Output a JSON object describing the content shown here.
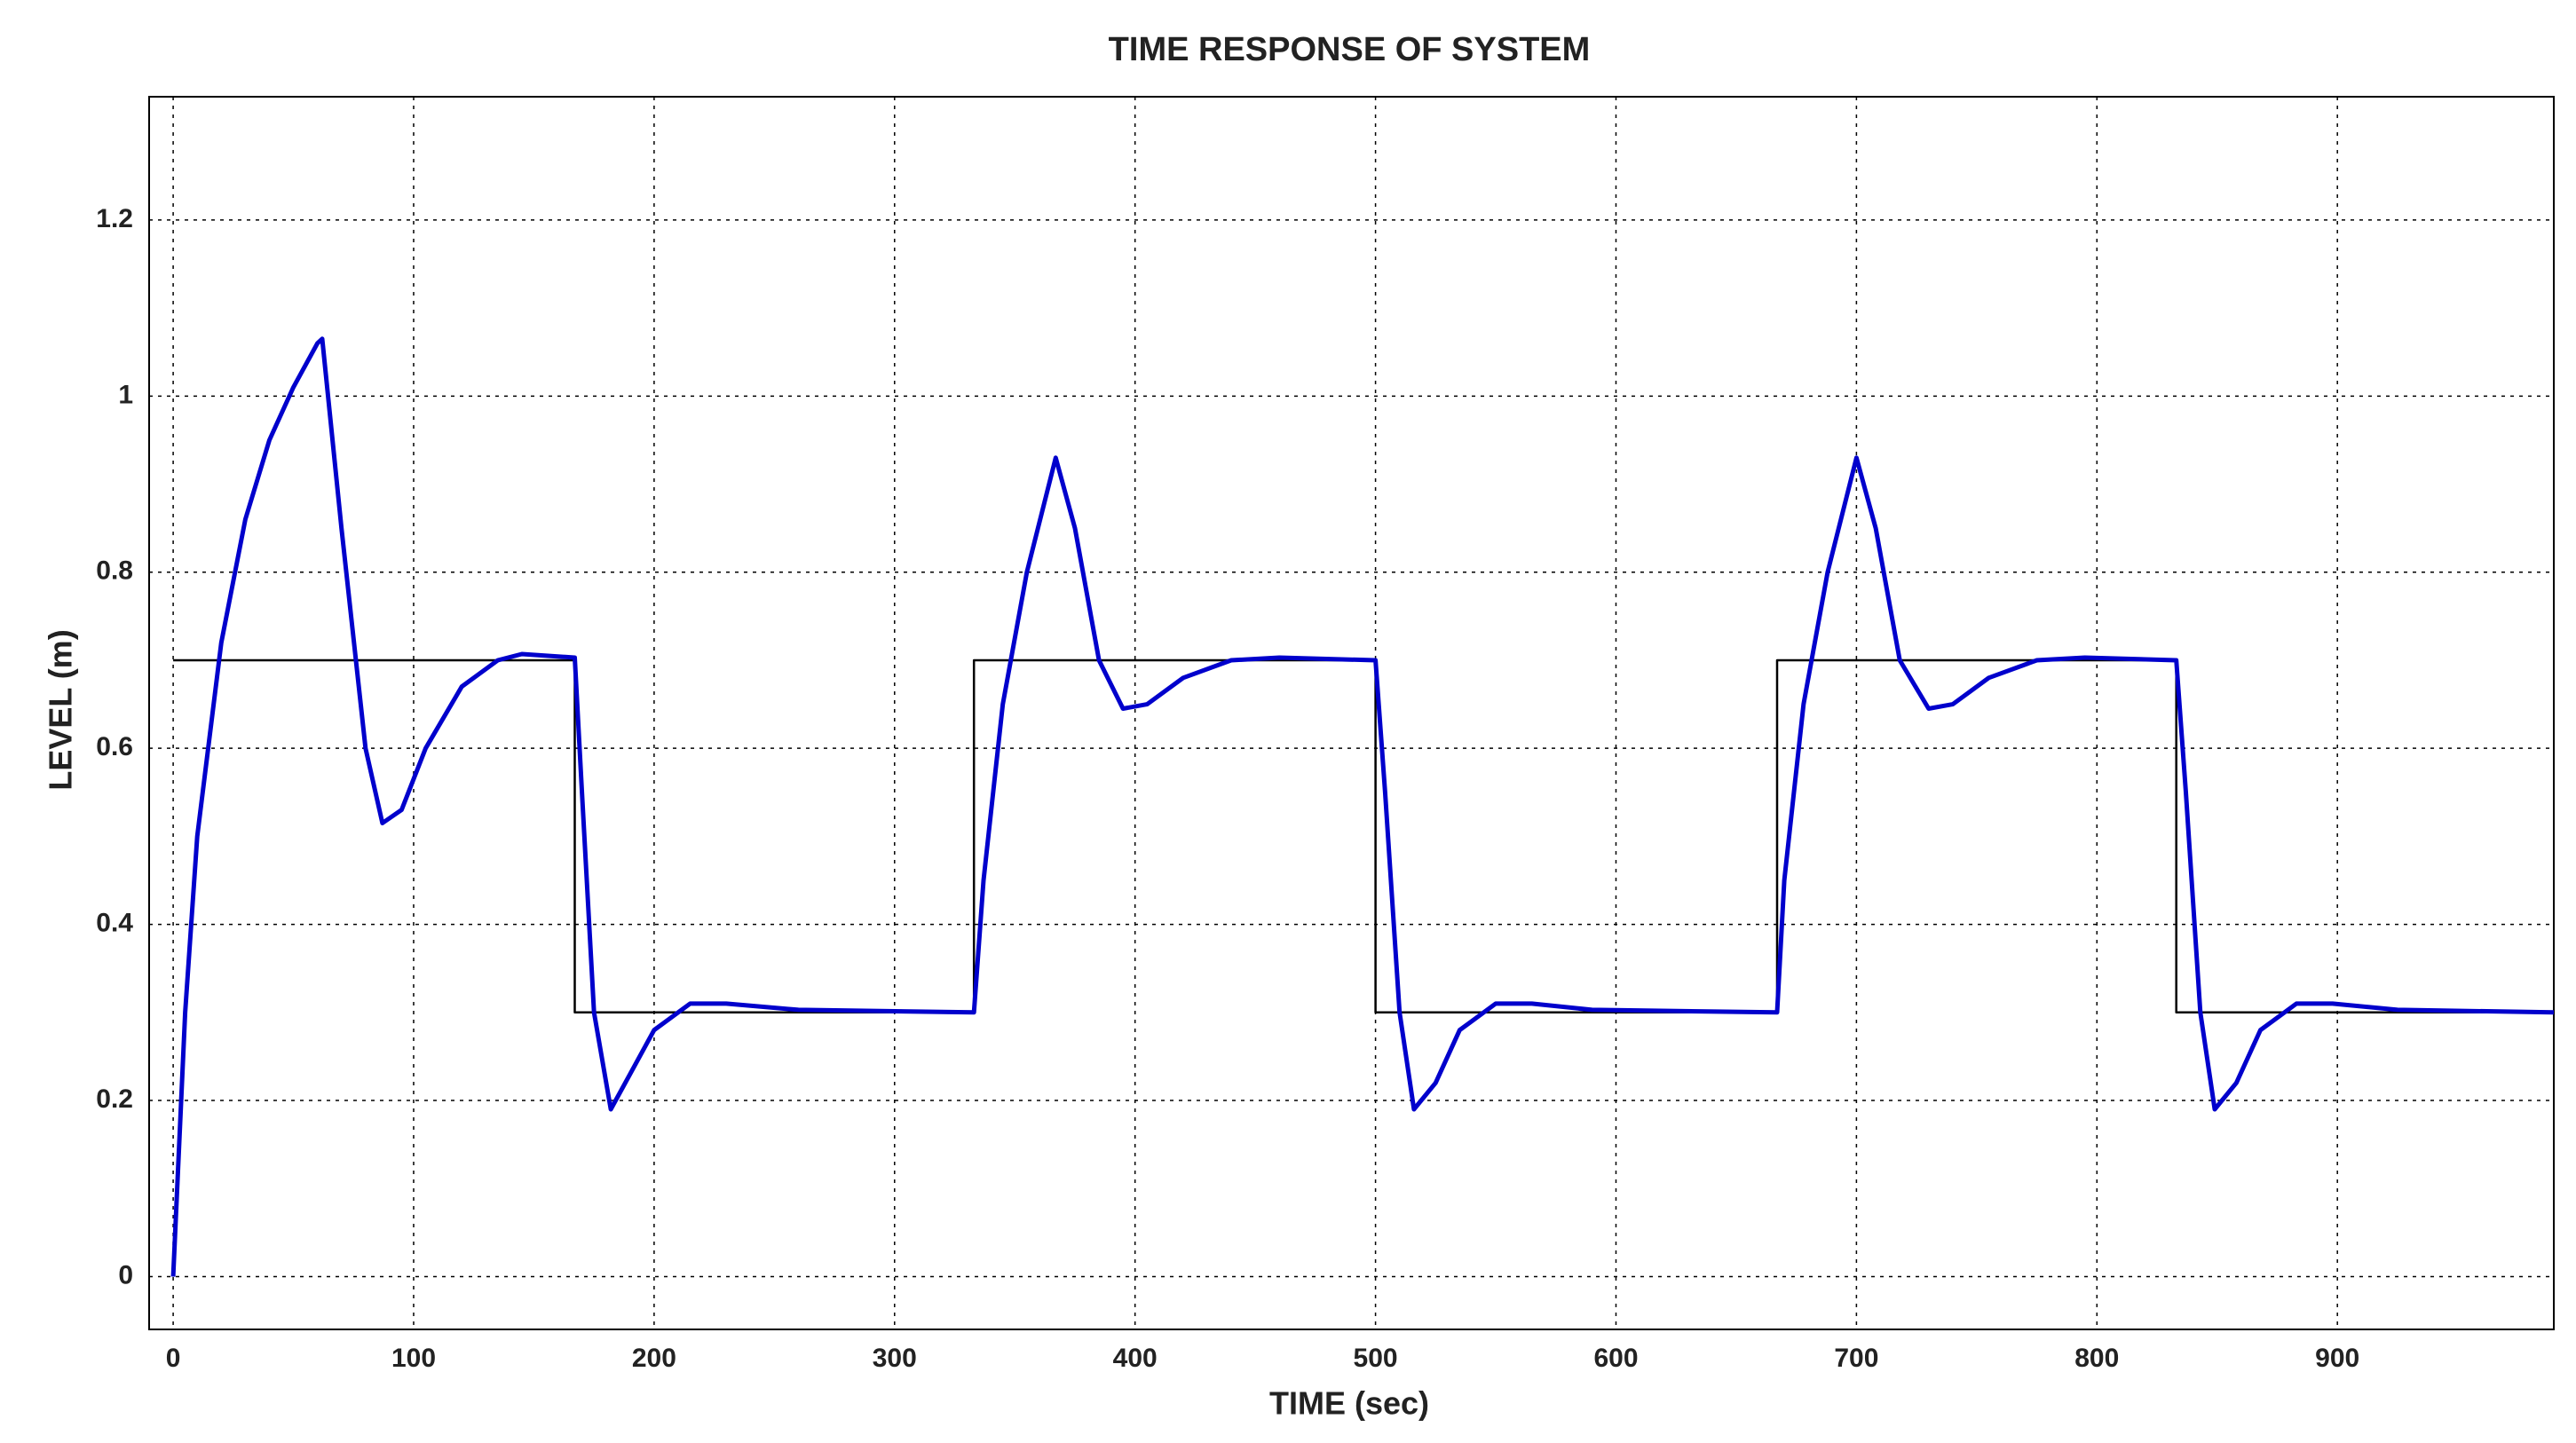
{
  "chart_data": {
    "type": "line",
    "title": "TIME RESPONSE OF SYSTEM",
    "x_label": "TIME (sec)",
    "y_label": "LEVEL (m)",
    "xlim": [
      -10,
      990
    ],
    "ylim": [
      -0.06,
      1.34
    ],
    "xticks": [
      0,
      100,
      200,
      300,
      400,
      500,
      600,
      700,
      800,
      900
    ],
    "yticks": [
      0,
      0.2,
      0.4,
      0.6,
      0.8,
      1,
      1.2
    ],
    "grid": true,
    "series": [
      {
        "color": "#000000",
        "x": [
          0,
          167,
          167,
          333,
          333,
          500,
          500,
          667,
          667,
          833,
          833,
          990
        ],
        "values": [
          0.7,
          0.7,
          0.3,
          0.3,
          0.7,
          0.7,
          0.3,
          0.3,
          0.7,
          0.7,
          0.3,
          0.3
        ]
      },
      {
        "color": "#0000cc",
        "x": [
          0,
          5,
          10,
          20,
          30,
          40,
          50,
          60,
          62,
          70,
          80,
          87,
          95,
          105,
          120,
          135,
          145,
          167,
          170,
          175,
          182,
          190,
          200,
          215,
          230,
          260,
          333,
          337,
          345,
          355,
          367,
          375,
          385,
          395,
          405,
          420,
          440,
          460,
          500,
          504,
          510,
          516,
          525,
          535,
          550,
          565,
          590,
          667,
          670,
          678,
          688,
          700,
          708,
          718,
          730,
          740,
          755,
          775,
          795,
          833,
          837,
          843,
          849,
          858,
          868,
          883,
          898,
          925,
          990
        ],
        "values": [
          0,
          0.3,
          0.5,
          0.72,
          0.86,
          0.95,
          1.01,
          1.06,
          1.065,
          0.85,
          0.6,
          0.515,
          0.53,
          0.6,
          0.67,
          0.7,
          0.707,
          0.703,
          0.55,
          0.3,
          0.19,
          0.23,
          0.28,
          0.31,
          0.31,
          0.303,
          0.3,
          0.45,
          0.65,
          0.8,
          0.93,
          0.85,
          0.7,
          0.645,
          0.65,
          0.68,
          0.7,
          0.703,
          0.7,
          0.55,
          0.3,
          0.19,
          0.22,
          0.28,
          0.31,
          0.31,
          0.303,
          0.3,
          0.45,
          0.65,
          0.8,
          0.93,
          0.85,
          0.7,
          0.645,
          0.65,
          0.68,
          0.7,
          0.703,
          0.7,
          0.55,
          0.3,
          0.19,
          0.22,
          0.28,
          0.31,
          0.31,
          0.303,
          0.3
        ]
      }
    ]
  }
}
